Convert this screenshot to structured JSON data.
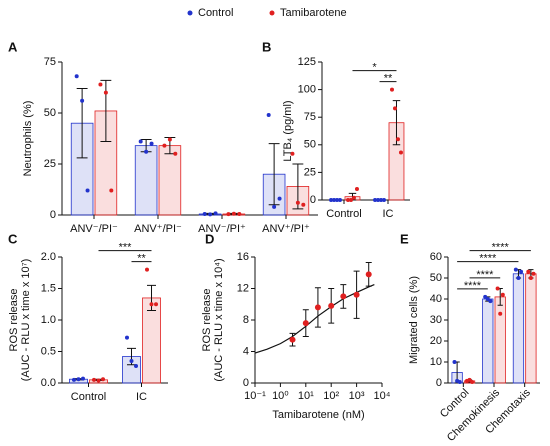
{
  "chart_data": [
    {
      "type": "bar",
      "label": "A",
      "ylabel": "Neutrophils (%)",
      "categories": [
        "ANV⁻/PI⁻",
        "ANV⁺/PI⁻",
        "ANV⁻/PI⁺",
        "ANV⁺/PI⁺"
      ],
      "series": [
        {
          "name": "Control",
          "color": "#2233cc",
          "values": [
            45,
            34,
            0.5,
            20
          ],
          "errors": [
            17,
            3,
            0.3,
            15
          ],
          "points": [
            [
              68,
              56,
              12
            ],
            [
              36,
              31,
              35
            ],
            [
              0.5,
              0.3,
              0.8
            ],
            [
              49,
              4,
              8
            ]
          ]
        },
        {
          "name": "Tamibarotene",
          "color": "#e02020",
          "values": [
            51,
            34,
            0.5,
            14
          ],
          "errors": [
            15,
            4,
            0.3,
            11
          ],
          "points": [
            [
              64,
              60,
              12
            ],
            [
              34,
              37,
              30
            ],
            [
              0.4,
              0.6,
              0.5
            ],
            [
              30,
              6,
              5
            ]
          ]
        }
      ],
      "ylim": [
        0,
        75
      ],
      "yticks": [
        0,
        25,
        50,
        75
      ]
    },
    {
      "type": "bar",
      "label": "B",
      "ylabel": "LTB₄ (pg/ml)",
      "categories": [
        "Control",
        "IC"
      ],
      "series": [
        {
          "color": "#2233cc",
          "values": [
            0,
            0
          ],
          "errors": [
            0,
            0
          ],
          "points": [
            [
              0,
              0,
              0,
              0
            ],
            [
              0,
              0,
              0,
              0
            ]
          ]
        },
        {
          "color": "#e02020",
          "values": [
            3,
            70
          ],
          "errors": [
            3,
            20
          ],
          "points": [
            [
              0,
              0,
              2,
              10
            ],
            [
              100,
              83,
              55,
              43
            ]
          ]
        }
      ],
      "ylim": [
        0,
        125
      ],
      "yticks": [
        0,
        25,
        50,
        75,
        100,
        125
      ],
      "annotations": [
        {
          "text": "**",
          "from": [
            1,
            0
          ],
          "to": [
            1,
            1
          ]
        },
        {
          "text": "*",
          "from": [
            0,
            1
          ],
          "to": [
            1,
            1
          ]
        }
      ]
    },
    {
      "type": "bar",
      "label": "C",
      "ylabel": [
        "ROS release",
        "(AUC - RLU x time x 10⁷)"
      ],
      "categories": [
        "Control",
        "IC"
      ],
      "series": [
        {
          "color": "#2233cc",
          "values": [
            0.06,
            0.42
          ],
          "errors": [
            0.01,
            0.13
          ],
          "points": [
            [
              0.05,
              0.06,
              0.07
            ],
            [
              0.72,
              0.35,
              0.27
            ]
          ]
        },
        {
          "color": "#e02020",
          "values": [
            0.05,
            1.35
          ],
          "errors": [
            0.01,
            0.2
          ],
          "points": [
            [
              0.05,
              0.04,
              0.06
            ],
            [
              1.8,
              1.25,
              1.25
            ]
          ]
        }
      ],
      "ylim": [
        0,
        2
      ],
      "yticks": [
        {
          "value": 0,
          "label": "0.0"
        },
        {
          "value": 0.5,
          "label": "0.5"
        },
        {
          "value": 1,
          "label": "1.0"
        },
        {
          "value": 1.5,
          "label": "1.5"
        },
        {
          "value": 2,
          "label": "2.0"
        }
      ],
      "annotations": [
        {
          "text": "**",
          "from": [
            1,
            0
          ],
          "to": [
            1,
            1
          ]
        },
        {
          "text": "***",
          "from": [
            0,
            1
          ],
          "to": [
            1,
            1
          ]
        }
      ]
    },
    {
      "type": "scatter",
      "label": "D",
      "ylabel": [
        "ROS release",
        "(AUC - RLU x time x 10⁴)"
      ],
      "xlabel": "Tamibarotene (nM)",
      "log_x": true,
      "color": "#e02020",
      "x": [
        3,
        10,
        30,
        100,
        300,
        1000,
        3000
      ],
      "values": [
        5.5,
        7.6,
        9.6,
        9.8,
        11,
        11.2,
        13.8
      ],
      "errors": [
        0.8,
        1.7,
        2.5,
        2.2,
        1.5,
        3,
        1.5
      ],
      "fit": {
        "x": [
          0.1,
          0.3,
          1,
          3,
          10,
          30,
          100,
          300,
          1000,
          3000,
          5000
        ],
        "y": [
          3.8,
          4.3,
          5.0,
          5.9,
          7.2,
          8.5,
          9.7,
          10.7,
          11.5,
          12.2,
          12.5
        ]
      },
      "xlim": [
        0.1,
        10000
      ],
      "xticks": [
        {
          "value": 0.1,
          "label": "10⁻¹"
        },
        {
          "value": 1,
          "label": "10⁰"
        },
        {
          "value": 10,
          "label": "10¹"
        },
        {
          "value": 100,
          "label": "10²"
        },
        {
          "value": 1000,
          "label": "10³"
        },
        {
          "value": 10000,
          "label": "10⁴"
        }
      ],
      "ylim": [
        0,
        16
      ],
      "yticks": [
        0,
        4,
        8,
        12,
        16
      ]
    },
    {
      "type": "bar",
      "label": "E",
      "ylabel": "Migrated cells (%)",
      "rotate_labels": true,
      "categories": [
        "Control",
        "Chemokinesis",
        "Chemotaxis"
      ],
      "series": [
        {
          "color": "#2233cc",
          "values": [
            5,
            40,
            52
          ],
          "errors": [
            5,
            1,
            2
          ],
          "points": [
            [
              10,
              1,
              0.5
            ],
            [
              41,
              40,
              39
            ],
            [
              54,
              50,
              53
            ]
          ]
        },
        {
          "color": "#e02020",
          "values": [
            1,
            41,
            52
          ],
          "errors": [
            0.5,
            4,
            2
          ],
          "points": [
            [
              1,
              1.5,
              0.5
            ],
            [
              45,
              33,
              42
            ],
            [
              53,
              50,
              52
            ]
          ]
        }
      ],
      "ylim": [
        0,
        60
      ],
      "yticks": [
        0,
        10,
        20,
        30,
        40,
        50,
        60
      ],
      "annotations": [
        {
          "text": "****",
          "from": [
            0,
            0
          ],
          "to": [
            1,
            0
          ]
        },
        {
          "text": "****",
          "from": [
            0,
            1
          ],
          "to": [
            1,
            1
          ]
        },
        {
          "text": "****",
          "from": [
            0,
            0
          ],
          "to": [
            2,
            0
          ]
        },
        {
          "text": "****",
          "from": [
            0,
            1
          ],
          "to": [
            2,
            1
          ]
        }
      ]
    }
  ]
}
